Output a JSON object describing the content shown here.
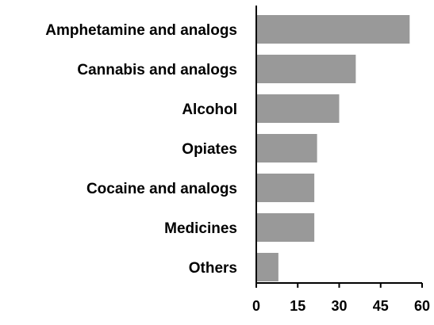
{
  "chart_data": {
    "type": "bar",
    "orientation": "horizontal",
    "categories": [
      "Amphetamine and analogs",
      "Cannabis and analogs",
      "Alcohol",
      "Opiates",
      "Cocaine and analogs",
      "Medicines",
      "Others"
    ],
    "values": [
      55.5,
      36,
      30,
      22,
      21,
      21,
      8
    ],
    "title": "",
    "xlabel": "",
    "ylabel": "",
    "xlim": [
      0,
      60
    ],
    "xticks": [
      "0",
      "15",
      "30",
      "45",
      "60"
    ],
    "grid": false,
    "bar_color": "#999999",
    "axis_color": "#000000"
  }
}
